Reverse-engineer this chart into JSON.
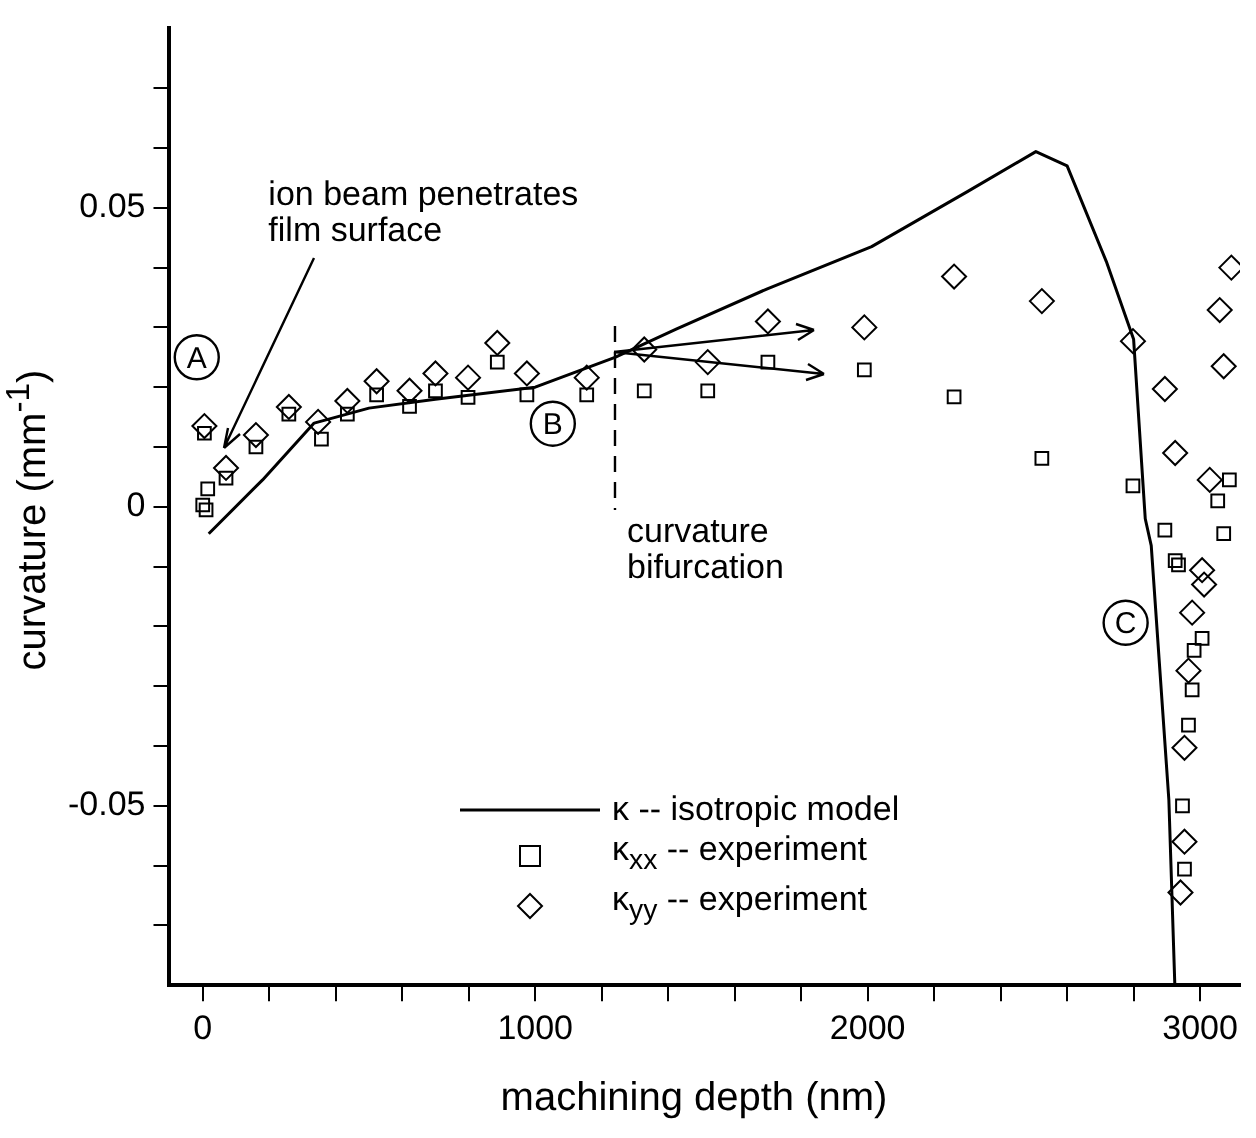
{
  "chart_data": {
    "type": "scatter",
    "xlabel": "machining depth (nm)",
    "ylabel": "curvature (mm$^{-1}$)",
    "xlim": [
      -100,
      3120
    ],
    "ylim": [
      -0.08,
      0.08
    ],
    "xticks": [
      0,
      {
        "value": 200,
        "label": null
      },
      {
        "value": 400,
        "label": null
      },
      {
        "value": 600,
        "label": null
      },
      {
        "value": 800,
        "label": null
      },
      1000,
      {
        "value": 1200,
        "label": null
      },
      {
        "value": 1400,
        "label": null
      },
      {
        "value": 1600,
        "label": null
      },
      {
        "value": 1800,
        "label": null
      },
      2000,
      {
        "value": 2200,
        "label": null
      },
      {
        "value": 2400,
        "label": null
      },
      {
        "value": 2600,
        "label": null
      },
      {
        "value": 2800,
        "label": null
      },
      3000
    ],
    "yticks": [
      {
        "value": -0.07,
        "label": null
      },
      {
        "value": -0.06,
        "label": null
      },
      -0.05,
      {
        "value": -0.04,
        "label": null
      },
      {
        "value": -0.03,
        "label": null
      },
      {
        "value": -0.02,
        "label": null
      },
      {
        "value": -0.01,
        "label": null
      },
      0,
      {
        "value": 0.01,
        "label": null
      },
      {
        "value": 0.02,
        "label": null
      },
      {
        "value": 0.03,
        "label": null
      },
      {
        "value": 0.04,
        "label": null
      },
      0.05,
      {
        "value": 0.06,
        "label": null
      },
      {
        "value": 0.07,
        "label": null
      }
    ],
    "grid": false,
    "legend": "bottom",
    "ref_lines": [
      {
        "axis": "x",
        "value": 1240,
        "label": "curvature bifurcation",
        "line_style": "dashed",
        "color": "#000000"
      }
    ],
    "series": [
      {
        "name": "κ -- isotropic model",
        "type": "line",
        "marker": "none",
        "line_style": "solid",
        "color": "#000000",
        "x": [
          18,
          180,
          335,
          500,
          700,
          1000,
          1240,
          1424,
          1700,
          2012,
          2300,
          2506,
          2600,
          2718,
          2800,
          2835,
          2853,
          2906,
          2924
        ],
        "values": [
          -0.0045,
          0.0045,
          0.014,
          0.0165,
          0.018,
          0.02,
          0.025,
          0.0297,
          0.0365,
          0.0435,
          0.0527,
          0.0594,
          0.057,
          0.041,
          0.028,
          -0.002,
          -0.0065,
          -0.049,
          -0.08
        ]
      },
      {
        "name": "κ$_{xx}$ -- experiment",
        "marker": "square",
        "color": "#000000",
        "x": [
          5,
          0,
          10,
          15,
          70,
          160,
          259,
          357,
          435,
          523,
          622,
          700,
          798,
          886,
          975,
          1155,
          1328,
          1519,
          1700,
          1990,
          2260,
          2524,
          2798,
          2894,
          2925,
          3088,
          3053,
          3071,
          2935,
          3006,
          2982,
          2976,
          2965,
          2947,
          2953
        ],
        "values": [
          0.0123,
          0.0003,
          -0.0005,
          0.003,
          0.0048,
          0.01,
          0.0155,
          0.0113,
          0.0155,
          0.0187,
          0.0168,
          0.0194,
          0.0183,
          0.0242,
          0.0187,
          0.0187,
          0.0194,
          0.0194,
          0.0242,
          0.0229,
          0.0184,
          0.0081,
          0.0035,
          -0.0039,
          -0.009,
          0.0045,
          0.001,
          -0.0045,
          -0.0097,
          -0.022,
          -0.024,
          -0.0306,
          -0.0365,
          -0.05,
          -0.0606
        ]
      },
      {
        "name": "κ$_{yy}$ -- experiment",
        "marker": "diamond",
        "color": "#000000",
        "x": [
          5,
          70,
          160,
          259,
          347,
          435,
          523,
          622,
          700,
          798,
          886,
          975,
          1155,
          1328,
          1519,
          1700,
          1990,
          2260,
          2524,
          2798,
          2894,
          2925,
          3094,
          3059,
          3071,
          3029,
          3006,
          3012,
          2976,
          2965,
          2953,
          2953,
          2941
        ],
        "values": [
          0.0135,
          0.0065,
          0.012,
          0.0167,
          0.0142,
          0.0177,
          0.021,
          0.0194,
          0.0223,
          0.0216,
          0.0274,
          0.0223,
          0.0216,
          0.0263,
          0.0242,
          0.031,
          0.03,
          0.0385,
          0.0344,
          0.0277,
          0.0197,
          0.009,
          0.04,
          0.0329,
          0.0235,
          0.0045,
          -0.0106,
          -0.013,
          -0.0177,
          -0.0274,
          -0.0403,
          -0.056,
          -0.0645
        ]
      }
    ],
    "annotations": [
      {
        "text": "ion beam penetrates film surface",
        "x": 65,
        "y": 0.0097
      },
      {
        "text": "A",
        "x": -18,
        "y": 0.025
      },
      {
        "text": "B",
        "x": 1053,
        "y": 0.0139
      },
      {
        "text": "C",
        "x": 2776,
        "y": -0.0194
      }
    ]
  }
}
